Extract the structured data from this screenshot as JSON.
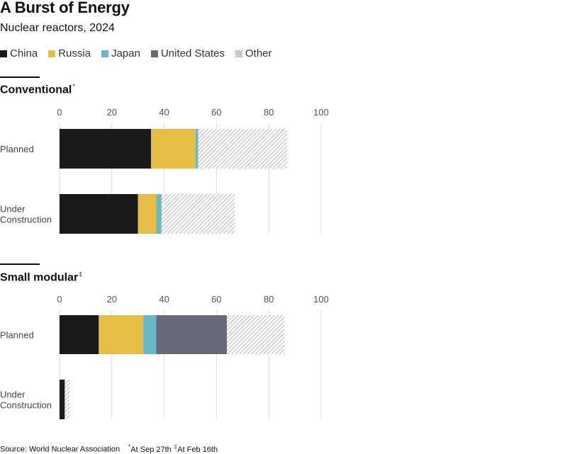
{
  "title": "A Burst of Energy",
  "subtitle": "Nuclear reactors, 2024",
  "legend": [
    {
      "label": "China",
      "color": "#1a1a1a",
      "hatched": false
    },
    {
      "label": "Russia",
      "color": "#e6bd45",
      "hatched": false
    },
    {
      "label": "Japan",
      "color": "#6db6c8",
      "hatched": false
    },
    {
      "label": "United States",
      "color": "#666a78",
      "hatched": false
    },
    {
      "label": "Other",
      "color": "#8a8a8a",
      "hatched": true
    }
  ],
  "panels": [
    {
      "title": "Conventional",
      "footnote_mark": "*"
    },
    {
      "title": "Small modular",
      "footnote_mark": "‡"
    }
  ],
  "source": {
    "text": "Source: World Nuclear Association",
    "note1_mark": "*",
    "note1_text": "At Sep 27th",
    "note2_mark": "‡",
    "note2_text": "At Feb 16th"
  },
  "chart_data": [
    {
      "type": "bar",
      "orientation": "horizontal",
      "stacked": true,
      "title": "Conventional",
      "categories": [
        "Planned",
        "Under\nConstruction"
      ],
      "xlim": [
        0,
        100
      ],
      "xticks": [
        0,
        20,
        40,
        60,
        80,
        100
      ],
      "grid": true,
      "series": [
        {
          "name": "China",
          "values": [
            35,
            30
          ]
        },
        {
          "name": "Russia",
          "values": [
            17,
            7
          ]
        },
        {
          "name": "Japan",
          "values": [
            1,
            2
          ]
        },
        {
          "name": "United States",
          "values": [
            0,
            0
          ]
        },
        {
          "name": "Other",
          "values": [
            34,
            28
          ]
        }
      ]
    },
    {
      "type": "bar",
      "orientation": "horizontal",
      "stacked": true,
      "title": "Small modular",
      "categories": [
        "Planned",
        "Under\nConstruction"
      ],
      "xlim": [
        0,
        100
      ],
      "xticks": [
        0,
        20,
        40,
        60,
        80,
        100
      ],
      "grid": true,
      "series": [
        {
          "name": "China",
          "values": [
            15,
            2
          ]
        },
        {
          "name": "Russia",
          "values": [
            17,
            0
          ]
        },
        {
          "name": "Japan",
          "values": [
            5,
            0
          ]
        },
        {
          "name": "United States",
          "values": [
            27,
            0
          ]
        },
        {
          "name": "Other",
          "values": [
            22,
            2
          ]
        }
      ]
    }
  ]
}
